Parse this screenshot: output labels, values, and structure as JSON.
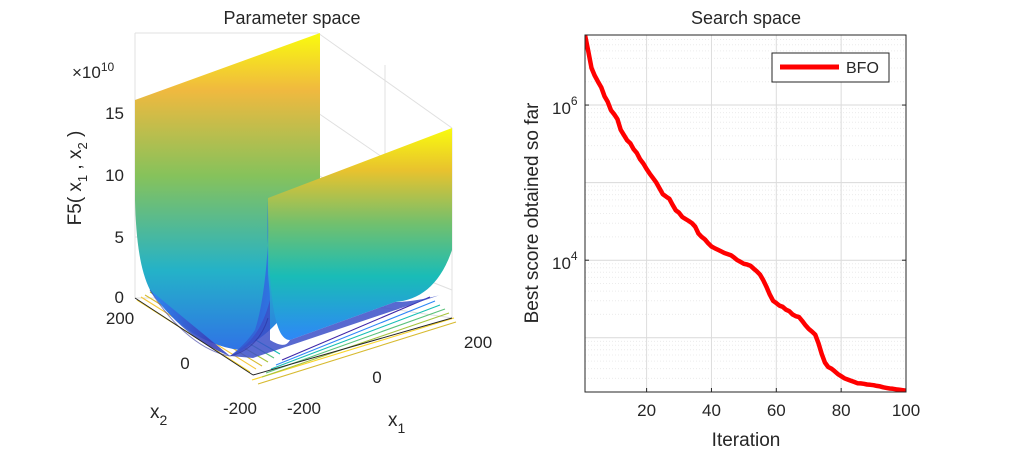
{
  "chart_data": [
    {
      "type": "surface",
      "title": "Parameter space",
      "xlabel": "x",
      "xlabel_sub": "1",
      "ylabel": "x",
      "ylabel_sub": "2",
      "zlabel_parts": [
        "F5( x",
        "1",
        " , x",
        "2",
        " )"
      ],
      "z_multiplier_text": "×10",
      "z_multiplier_exp": "10",
      "x_ticks": [
        "-200",
        "0",
        "200"
      ],
      "y_ticks": [
        "200",
        "0",
        "-200"
      ],
      "z_ticks": [
        "15",
        "10",
        "5",
        "0"
      ],
      "z_tick_values": [
        15,
        10,
        5,
        0
      ],
      "zlim": [
        0,
        16
      ],
      "colormap": [
        "#3e26a8",
        "#2e87f7",
        "#17beb4",
        "#a6c33c",
        "#f9d529",
        "#f9fb0e"
      ],
      "grid": true
    },
    {
      "type": "line",
      "title": "Search space",
      "xlabel": "Iteration",
      "ylabel": "Best score obtained so far",
      "yscale": "log",
      "xlim": [
        1,
        100
      ],
      "ylim": [
        200,
        8000000
      ],
      "x_ticks": [
        "20",
        "40",
        "60",
        "80",
        "100"
      ],
      "x_tick_values": [
        20,
        40,
        60,
        80,
        100
      ],
      "y_ticks": [
        {
          "base": "10",
          "exp": "6",
          "value": 1000000
        },
        {
          "base": "10",
          "exp": "4",
          "value": 10000
        }
      ],
      "legend_location": "top-right",
      "grid": true,
      "minor_grid": true,
      "series": [
        {
          "name": "BFO",
          "color": "#ff0000",
          "x": [
            1,
            2,
            3,
            4,
            5,
            6,
            7,
            8,
            9,
            10,
            11,
            12,
            13,
            14,
            15,
            16,
            17,
            18,
            19,
            20,
            21,
            22,
            23,
            24,
            25,
            26,
            27,
            28,
            29,
            30,
            31,
            32,
            33,
            34,
            35,
            36,
            37,
            38,
            39,
            40,
            41,
            42,
            43,
            44,
            45,
            46,
            47,
            48,
            49,
            50,
            51,
            52,
            53,
            54,
            55,
            56,
            57,
            58,
            59,
            60,
            61,
            62,
            63,
            64,
            65,
            66,
            67,
            68,
            69,
            70,
            71,
            72,
            73,
            74,
            75,
            76,
            77,
            78,
            79,
            80,
            81,
            82,
            83,
            84,
            85,
            86,
            87,
            88,
            89,
            90,
            91,
            92,
            93,
            94,
            95,
            96,
            97,
            98,
            99,
            100
          ],
          "y": [
            8000000,
            5000000,
            3000000,
            2400000,
            2000000,
            1700000,
            1300000,
            1100000,
            860000,
            760000,
            660000,
            480000,
            410000,
            350000,
            320000,
            270000,
            240000,
            200000,
            176000,
            150000,
            130000,
            114000,
            100000,
            84000,
            71000,
            66000,
            62000,
            52000,
            44000,
            41000,
            36000,
            34000,
            32000,
            30000,
            27000,
            22000,
            20000,
            18500,
            16500,
            15000,
            14300,
            13600,
            13000,
            12400,
            12000,
            11600,
            10800,
            10000,
            9500,
            9000,
            8800,
            8500,
            7800,
            7200,
            6500,
            5500,
            4500,
            3600,
            3000,
            2800,
            2600,
            2500,
            2300,
            2200,
            2000,
            1900,
            1850,
            1650,
            1450,
            1300,
            1200,
            1100,
            850,
            620,
            480,
            420,
            400,
            370,
            340,
            320,
            300,
            290,
            280,
            270,
            260,
            258,
            255,
            250,
            248,
            245,
            240,
            236,
            230,
            226,
            222,
            220,
            217,
            214,
            211,
            208
          ]
        }
      ]
    }
  ]
}
